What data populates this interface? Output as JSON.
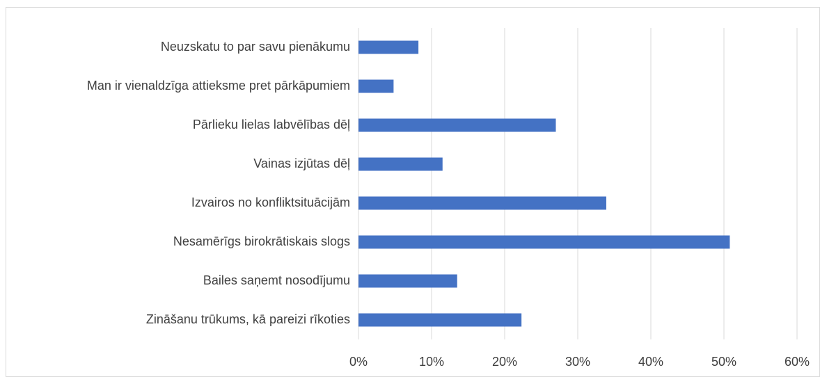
{
  "chart_data": {
    "type": "bar",
    "orientation": "horizontal",
    "categories": [
      "Neuzskatu to par savu pienākumu",
      "Man ir vienaldzīga attieksme pret pārkāpumiem",
      "Pārlieku lielas labvēlības dēļ",
      "Vainas izjūtas dēļ",
      "Izvairos no konfliktsituācijām",
      "Nesamērīgs birokrātiskais slogs",
      "Bailes saņemt nosodījumu",
      "Zināšanu trūkums, kā pareizi rīkoties"
    ],
    "values": [
      8.2,
      4.8,
      27.0,
      11.5,
      33.9,
      50.8,
      13.5,
      22.3
    ],
    "color": "#4472c4",
    "xlim": [
      0,
      60
    ],
    "xticks": [
      {
        "value": 0,
        "label": "0%"
      },
      {
        "value": 10,
        "label": "10%"
      },
      {
        "value": 20,
        "label": "20%"
      },
      {
        "value": 30,
        "label": "30%"
      },
      {
        "value": 40,
        "label": "40%"
      },
      {
        "value": 50,
        "label": "50%"
      },
      {
        "value": 60,
        "label": "60%"
      }
    ],
    "grid": true
  }
}
